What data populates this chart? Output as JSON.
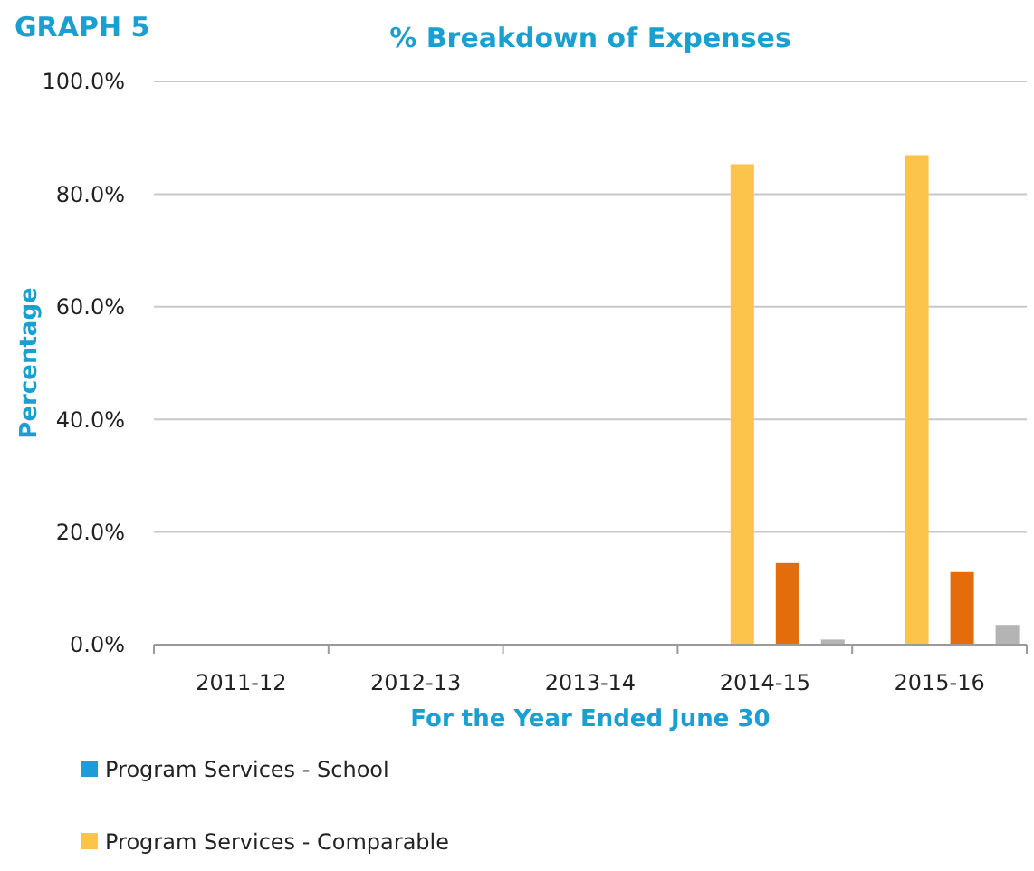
{
  "chart_data": {
    "type": "bar",
    "title": "% Breakdown of Expenses",
    "annotations": [
      "GRAPH 5"
    ],
    "xlabel": "For the Year Ended June 30",
    "ylabel": "Percentage",
    "categories": [
      "2011-12",
      "2012-13",
      "2013-14",
      "2014-15",
      "2015-16"
    ],
    "series": [
      {
        "name": "Program Services - School",
        "color": "#1f9bd7",
        "values": [
          null,
          null,
          null,
          null,
          null
        ]
      },
      {
        "name": "Program Services - Comparable",
        "color": "#fcc44b",
        "values": [
          null,
          null,
          null,
          85.3,
          86.9
        ]
      },
      {
        "color": "#e46c0a",
        "values": [
          null,
          null,
          null,
          14.5,
          12.9
        ]
      },
      {
        "color": "#b4b4b4",
        "values": [
          null,
          null,
          null,
          0.9,
          3.5
        ]
      }
    ],
    "ylim": [
      0,
      100
    ],
    "yticks": [
      {
        "value": 0,
        "label": "0.0%"
      },
      {
        "value": 20,
        "label": "20.0%"
      },
      {
        "value": 40,
        "label": "40.0%"
      },
      {
        "value": 60,
        "label": "60.0%"
      },
      {
        "value": 80,
        "label": "80.0%"
      },
      {
        "value": 100,
        "label": "100.0%"
      }
    ],
    "grid": "y",
    "legend": "bottom left"
  }
}
